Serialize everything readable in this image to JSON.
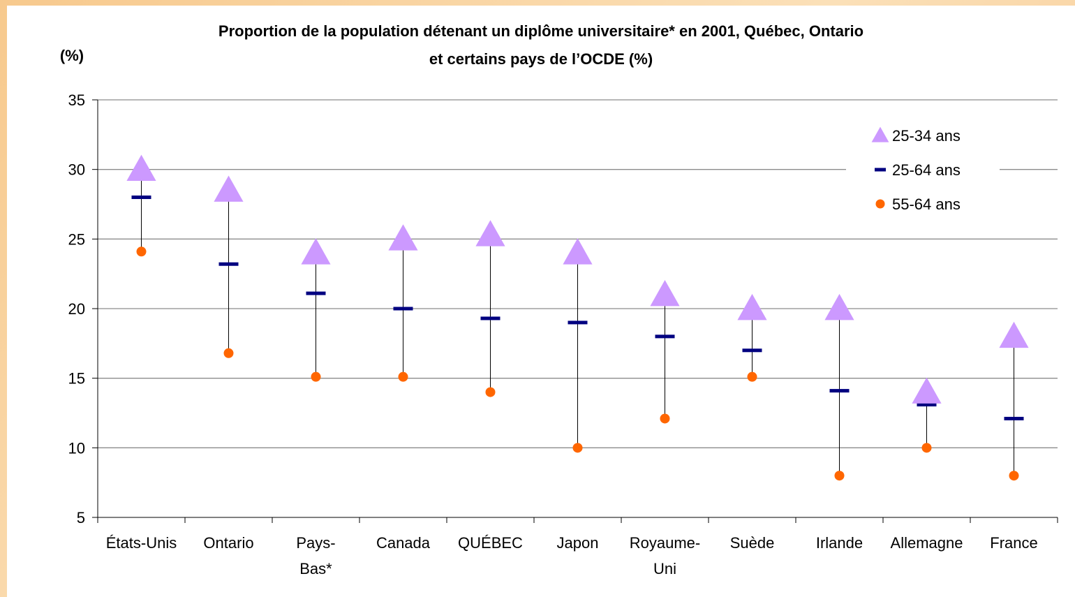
{
  "chart_data": {
    "type": "scatter",
    "title_line1": "Proportion de la population détenant un diplôme universitaire* en 2001, Québec, Ontario",
    "title_line2": "et certains pays de l’OCDE (%)",
    "ylabel": "(%)",
    "xlabel": "",
    "ylim": [
      5,
      35
    ],
    "yticks": [
      "5",
      "10",
      "15",
      "20",
      "25",
      "30",
      "35"
    ],
    "grid": true,
    "legend_position": "top-right",
    "categories": [
      [
        "États-Unis"
      ],
      [
        "Ontario"
      ],
      [
        "Pays-",
        "Bas*"
      ],
      [
        "Canada"
      ],
      [
        "QUÉBEC"
      ],
      [
        "Japon"
      ],
      [
        "Royaume-",
        "Uni"
      ],
      [
        "Suède"
      ],
      [
        "Irlande"
      ],
      [
        "Allemagne"
      ],
      [
        "France"
      ]
    ],
    "series": [
      {
        "name": "25-34 ans",
        "marker": "triangle",
        "color": "#cc99ff",
        "values": [
          30,
          28.5,
          24,
          25,
          25.3,
          24,
          21,
          20,
          20,
          14,
          18
        ]
      },
      {
        "name": "25-64 ans",
        "marker": "dash",
        "color": "#000080",
        "values": [
          28,
          23.2,
          21.1,
          20,
          19.3,
          19,
          18,
          17,
          14.1,
          13.1,
          12.1
        ]
      },
      {
        "name": "55-64 ans",
        "marker": "circle",
        "color": "#ff6600",
        "values": [
          24.1,
          16.8,
          15.1,
          15.1,
          14,
          10,
          12.1,
          15.1,
          8,
          10,
          8
        ]
      }
    ]
  }
}
